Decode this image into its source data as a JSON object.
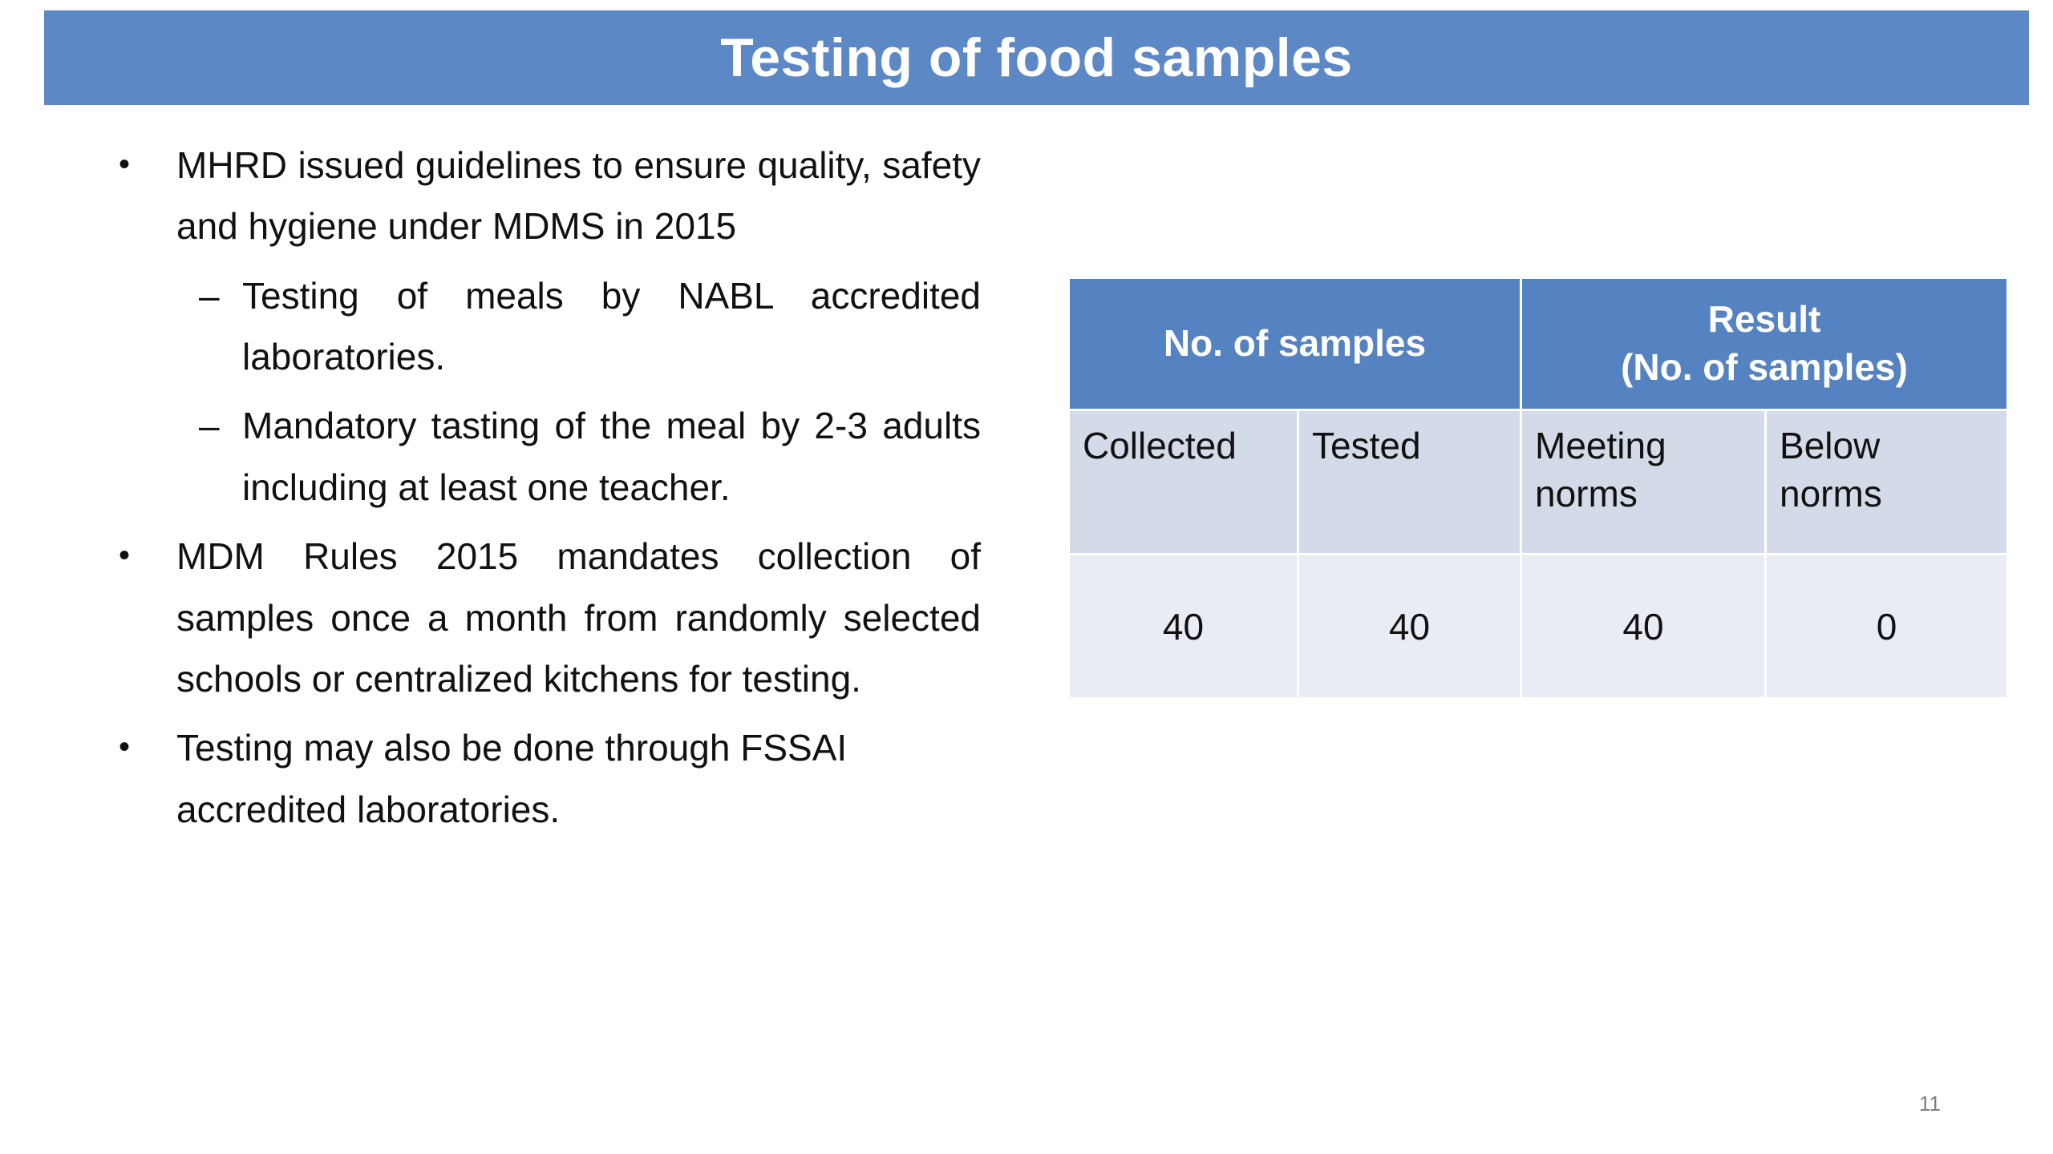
{
  "title": "Testing of food samples",
  "page_number": "11",
  "bullets": [
    {
      "level": 1,
      "marker": "•",
      "text": "MHRD issued guidelines to ensure quality, safety and hygiene under MDMS in 2015"
    },
    {
      "level": 2,
      "marker": "–",
      "text": "Testing of meals by NABL accredited laboratories."
    },
    {
      "level": 2,
      "marker": "–",
      "text": "Mandatory tasting of the meal by 2-3 adults including at least one teacher."
    },
    {
      "level": 1,
      "marker": "•",
      "text": "MDM Rules 2015 mandates collection of samples once a month from randomly selected schools or centralized kitchens for testing."
    },
    {
      "level": 1,
      "marker": "•",
      "text": "Testing may also be done through FSSAI accredited laboratories."
    }
  ],
  "table": {
    "group_headers": [
      "No. of samples",
      "Result\n(No. of samples)"
    ],
    "column_headers": [
      "Collected",
      "Tested",
      "Meeting\nnorms",
      "Below\nnorms"
    ],
    "rows": [
      [
        "40",
        "40",
        "40",
        "0"
      ]
    ]
  },
  "colors": {
    "title_bar_bg": "#5c88c5",
    "table_header_bg": "#5583c1",
    "subheader_bg": "#d3dae8",
    "data_row_bg": "#e9ecf4",
    "page_num_color": "#808080"
  }
}
